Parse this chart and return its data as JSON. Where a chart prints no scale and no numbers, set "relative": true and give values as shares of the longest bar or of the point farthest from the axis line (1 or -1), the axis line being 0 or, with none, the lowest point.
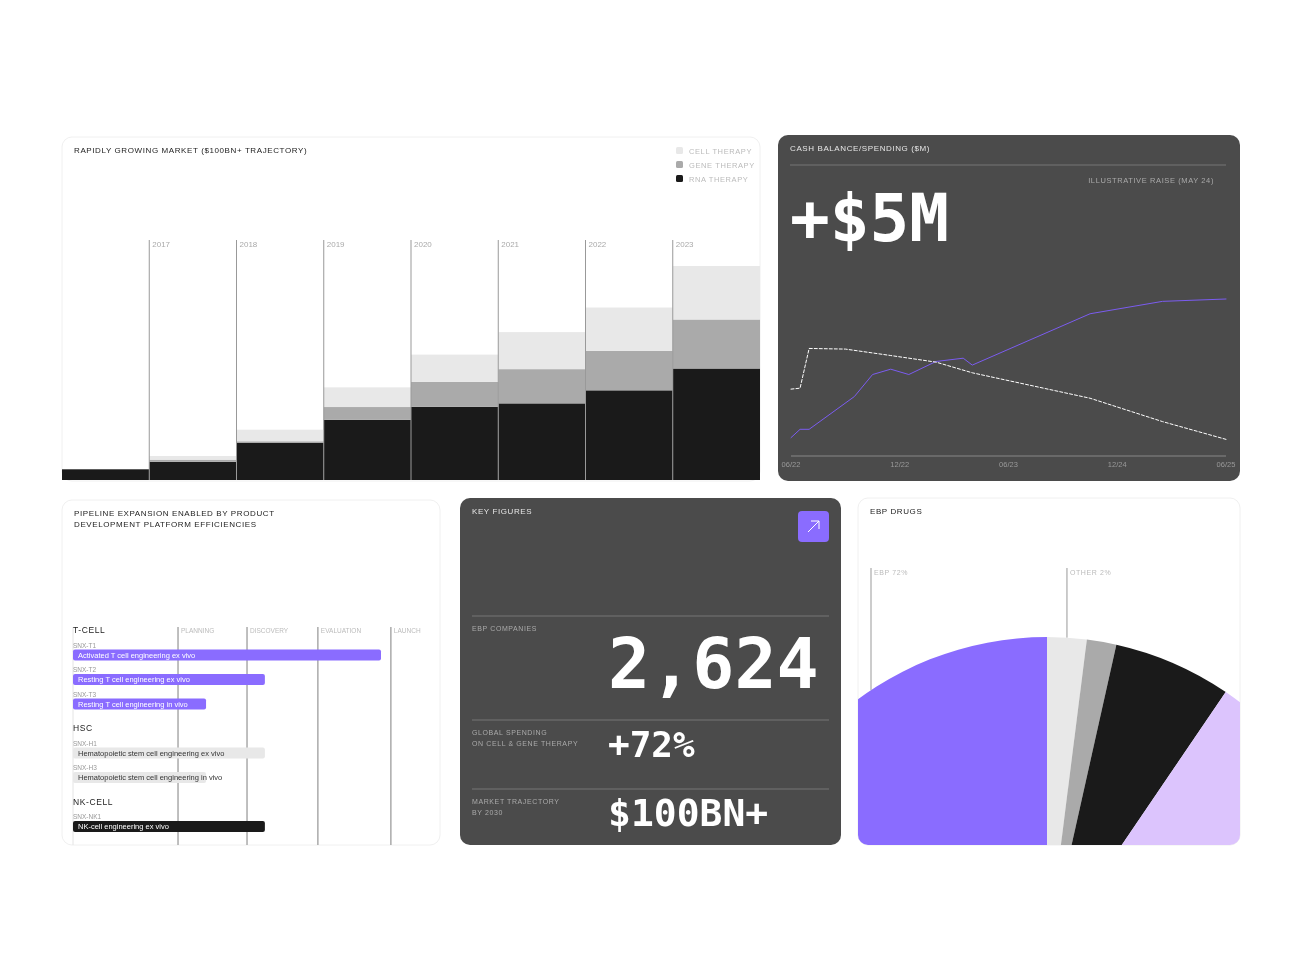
{
  "chart_data": [
    {
      "type": "bar",
      "title": "RAPIDLY GROWING MARKET ($100BN+ TRAJECTORY)",
      "relative": true,
      "stacked": true,
      "legend": "top right",
      "categories": [
        null,
        "2017",
        "2018",
        "2019",
        "2020",
        "2021",
        "2022",
        "2023"
      ],
      "series": [
        {
          "name": "RNA THERAPY",
          "color": "#1a1a1a",
          "values": [
            0.05,
            0.085,
            0.173,
            0.281,
            0.342,
            0.358,
            0.419,
            0.521
          ]
        },
        {
          "name": "GENE THERAPY",
          "color": "#aaaaaa",
          "values": [
            0,
            0.01,
            0.008,
            0.06,
            0.117,
            0.16,
            0.185,
            0.229
          ]
        },
        {
          "name": "CELL THERAPY",
          "color": "#e8e8e8",
          "values": [
            0,
            0.017,
            0.054,
            0.092,
            0.127,
            0.173,
            0.202,
            0.25
          ]
        }
      ]
    },
    {
      "type": "line",
      "title": "CASH BALANCE/SPENDING ($M)",
      "relative": true,
      "annotations": [
        "+$5M",
        "ILLUSTRATIVE RAISE (MAY 24)"
      ],
      "categories": [
        "06/22",
        null,
        null,
        null,
        null,
        null,
        null,
        null,
        null,
        null,
        null,
        null,
        "12/22",
        null,
        null,
        null,
        null,
        null,
        null,
        null,
        null,
        null,
        null,
        null,
        "06/23",
        null,
        null,
        null,
        null,
        null,
        null,
        null,
        null,
        null,
        null,
        null,
        "12/24",
        null,
        null,
        null,
        null,
        null,
        null,
        null,
        null,
        null,
        null,
        null,
        "06/25"
      ],
      "series": [
        {
          "color": "#7b5cf0",
          "values": [
            0.117,
            0.17,
            0.17,
            null,
            null,
            null,
            null,
            0.379,
            null,
            0.519,
            null,
            0.553,
            null,
            0.519,
            null,
            null,
            0.602,
            null,
            null,
            0.623,
            0.579,
            null,
            null,
            null,
            null,
            null,
            null,
            null,
            null,
            null,
            null,
            null,
            null,
            0.906,
            null,
            null,
            null,
            null,
            null,
            null,
            null,
            0.985,
            null,
            null,
            null,
            null,
            null,
            null,
            1
          ]
        },
        {
          "color": "#ffffff",
          "line_style": "dashed",
          "values": [
            0.426,
            0.432,
            0.685,
            null,
            null,
            null,
            0.681,
            null,
            null,
            null,
            null,
            0.64,
            null,
            null,
            null,
            null,
            0.598,
            null,
            null,
            null,
            0.53,
            null,
            null,
            null,
            null,
            null,
            null,
            null,
            null,
            null,
            null,
            null,
            null,
            0.368,
            null,
            null,
            null,
            null,
            null,
            null,
            null,
            0.219,
            null,
            null,
            null,
            null,
            null,
            null,
            0.106
          ]
        }
      ]
    },
    {
      "type": "bar",
      "orientation": "horizontal",
      "title": "PIPELINE EXPANSION ENABLED BY PRODUCT\nDEVELOPMENT PLATFORM EFFICIENCIES",
      "categories": [
        "T-CELL",
        "SNX-T1",
        "SNX-T2",
        "SNX-T3",
        "HSC",
        "SNX-H1",
        "SNX-H3",
        "NK-CELL",
        "SNX-NK1"
      ],
      "values": [
        null,
        1,
        0.623,
        0.432,
        null,
        0.623,
        0.432,
        null,
        0.623
      ],
      "colors": [
        null,
        "#8a6cff",
        "#8a6cff",
        "#8a6cff",
        null,
        "#e8e8e8",
        "#e8e8e8",
        null,
        "#1a1a1a"
      ],
      "relative": true,
      "ref_lines": [
        {
          "axis": "x",
          "value": 0.341,
          "label": "PLANNING"
        },
        {
          "axis": "x",
          "value": 0.565,
          "label": "DISCOVERY"
        },
        {
          "axis": "x",
          "value": 0.795,
          "label": "EVALUATION"
        },
        {
          "axis": "x",
          "value": 1.032,
          "label": "LAUNCH"
        }
      ],
      "annotations": [
        "Activated T cell engineering ex vivo",
        "Resting T cell engineering ex vivo",
        "Resting T cell engineering in vivo",
        "Hematopoietic stem cell engineering ex vivo",
        "Hematopoietic stem cell engineering in vivo",
        "NK-cell engineering ex vivo"
      ]
    },
    {
      "type": "other",
      "title": "KEY FIGURES",
      "annotations": [
        "EBP COMPANIES",
        "2,624",
        "GLOBAL SPENDING\nON CELL & GENE THERAPY",
        "+72%",
        "MARKET TRAJECTORY\nBY 2030",
        "$100BN+"
      ]
    },
    {
      "type": "pie",
      "title": "EBP DRUGS",
      "categories": [
        "OTHER",
        null,
        null,
        null,
        "EBP"
      ],
      "values": [
        2,
        1.5,
        6,
        18.5,
        72
      ],
      "value_labels": [
        "2%",
        null,
        null,
        null,
        "72%"
      ],
      "colors": [
        "#e8e8e8",
        "#aaaaaa",
        "#1a1a1a",
        "#dcc4fd",
        "#8a6cff"
      ]
    }
  ]
}
